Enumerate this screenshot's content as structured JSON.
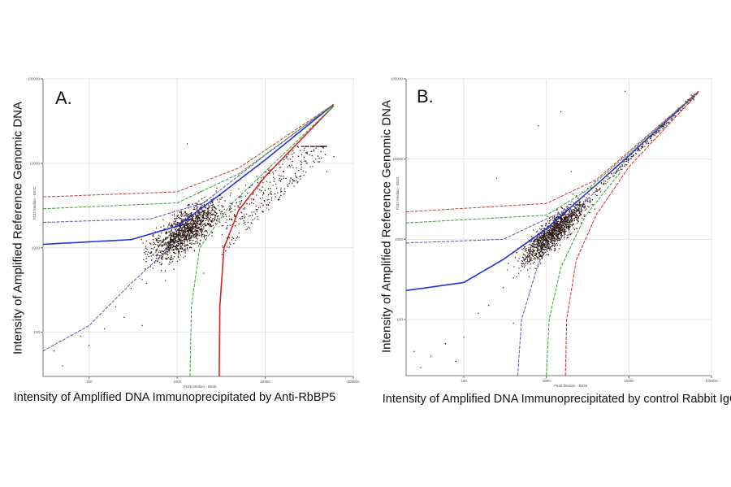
{
  "chart_data": [
    {
      "type": "scatter",
      "panel_label": "A.",
      "xlabel": "Intensity of Amplified DNA Immunoprecipitated by Anti-RbBP5",
      "ylabel": "Intensity of Amplified Reference Genomic DNA",
      "inner_xlabel": "F635 Median - B635",
      "inner_ylabel": "F532 Median - B532",
      "xscale": "log",
      "yscale": "log",
      "xlim": [
        30,
        100000
      ],
      "ylim": [
        30,
        100000
      ],
      "xticks": [
        "100",
        "1000",
        "10000",
        "100000"
      ],
      "yticks": [
        "100",
        "1000",
        "10000",
        "100000"
      ],
      "grid": true,
      "points": [
        [
          40,
          60
        ],
        [
          50,
          40
        ],
        [
          80,
          90
        ],
        [
          100,
          70
        ],
        [
          150,
          110
        ],
        [
          200,
          200
        ],
        [
          250,
          150
        ],
        [
          300,
          330
        ],
        [
          400,
          420
        ],
        [
          450,
          380
        ],
        [
          500,
          600
        ],
        [
          600,
          700
        ],
        [
          700,
          900
        ],
        [
          800,
          1000
        ],
        [
          900,
          1200
        ],
        [
          1000,
          1400
        ],
        [
          1200,
          1500
        ],
        [
          1500,
          1900
        ],
        [
          1800,
          2200
        ],
        [
          2000,
          2500
        ],
        [
          2500,
          2800
        ],
        [
          3000,
          3500
        ],
        [
          3500,
          3600
        ],
        [
          4000,
          4200
        ],
        [
          5000,
          5000
        ],
        [
          6000,
          5500
        ],
        [
          8000,
          7000
        ],
        [
          10000,
          8000
        ],
        [
          15000,
          9000
        ],
        [
          20000,
          9500
        ],
        [
          30000,
          10000
        ],
        [
          50000,
          8000
        ],
        [
          60000,
          12000
        ],
        [
          1300,
          17000
        ],
        [
          400,
          120
        ],
        [
          2000,
          500
        ]
      ],
      "curves": [
        {
          "color": "#2233dd",
          "style": "solid",
          "points": [
            [
              30,
              1100
            ],
            [
              300,
              1250
            ],
            [
              1000,
              1800
            ],
            [
              3000,
              4200
            ],
            [
              10000,
              11000
            ],
            [
              60000,
              50000
            ]
          ]
        },
        {
          "color": "#6655aa",
          "style": "dashed",
          "points": [
            [
              30,
              2000
            ],
            [
              500,
              2200
            ],
            [
              2000,
              3400
            ],
            [
              10000,
              12500
            ],
            [
              60000,
              50000
            ]
          ]
        },
        {
          "color": "#449944",
          "style": "dashed",
          "points": [
            [
              30,
              2900
            ],
            [
              1000,
              3400
            ],
            [
              5000,
              7500
            ],
            [
              60000,
              50000
            ]
          ]
        },
        {
          "color": "#bb4444",
          "style": "dashed",
          "points": [
            [
              30,
              4000
            ],
            [
              1000,
              4600
            ],
            [
              5000,
              8800
            ],
            [
              60000,
              50000
            ]
          ]
        },
        {
          "color": "#dd2222",
          "style": "solid",
          "points": [
            [
              3000,
              30
            ],
            [
              3050,
              200
            ],
            [
              3400,
              1000
            ],
            [
              5000,
              2800
            ],
            [
              10000,
              7000
            ],
            [
              60000,
              48000
            ]
          ]
        },
        {
          "color": "#449944",
          "style": "dashed",
          "points": [
            [
              1400,
              30
            ],
            [
              1450,
              200
            ],
            [
              1800,
              1000
            ],
            [
              4000,
              3200
            ],
            [
              60000,
              48000
            ]
          ]
        },
        {
          "color": "#6655aa",
          "style": "dashed",
          "points": [
            [
              30,
              60
            ],
            [
              100,
              120
            ],
            [
              300,
              380
            ],
            [
              1000,
              1200
            ]
          ]
        }
      ]
    },
    {
      "type": "scatter",
      "panel_label": "B.",
      "xlabel": "Intensity of Amplified DNA Immunoprecipitated by control Rabbit IgG",
      "ylabel": "Intensity of Amplified Reference Genomic DNA",
      "inner_xlabel": "F635 Median - B635",
      "inner_ylabel": "F532 Median - B532",
      "xscale": "log",
      "yscale": "log",
      "xlim": [
        20,
        100000
      ],
      "ylim": [
        20,
        100000
      ],
      "xticks": [
        "100",
        "1000",
        "10000",
        "100000"
      ],
      "yticks": [
        "100",
        "1000",
        "10000",
        "100000"
      ],
      "grid": true,
      "points": [
        [
          25,
          40
        ],
        [
          30,
          25
        ],
        [
          40,
          35
        ],
        [
          60,
          50
        ],
        [
          80,
          30
        ],
        [
          100,
          60
        ],
        [
          150,
          120
        ],
        [
          200,
          150
        ],
        [
          300,
          250
        ],
        [
          400,
          330
        ],
        [
          500,
          500
        ],
        [
          600,
          600
        ],
        [
          800,
          800
        ],
        [
          1000,
          1000
        ],
        [
          1300,
          1300
        ],
        [
          1600,
          1600
        ],
        [
          2000,
          2000
        ],
        [
          2500,
          2400
        ],
        [
          3000,
          3000
        ],
        [
          4000,
          4000
        ],
        [
          5000,
          5000
        ],
        [
          7000,
          7000
        ],
        [
          10000,
          10000
        ],
        [
          20000,
          20000
        ],
        [
          40000,
          40000
        ],
        [
          65000,
          65000
        ],
        [
          1500,
          39000
        ],
        [
          800,
          26000
        ],
        [
          9000,
          70000
        ],
        [
          250,
          5800
        ],
        [
          2000,
          7000
        ],
        [
          400,
          90
        ]
      ],
      "curves": [
        {
          "color": "#2233dd",
          "style": "solid",
          "points": [
            [
              20,
              230
            ],
            [
              100,
              290
            ],
            [
              300,
              560
            ],
            [
              1000,
              1350
            ],
            [
              10000,
              11000
            ],
            [
              70000,
              70000
            ]
          ]
        },
        {
          "color": "#6655aa",
          "style": "dashed",
          "points": [
            [
              20,
              900
            ],
            [
              300,
              1000
            ],
            [
              2000,
              2500
            ],
            [
              70000,
              70000
            ]
          ]
        },
        {
          "color": "#449944",
          "style": "dashed",
          "points": [
            [
              20,
              1600
            ],
            [
              1000,
              2000
            ],
            [
              3000,
              4000
            ],
            [
              70000,
              70000
            ]
          ]
        },
        {
          "color": "#bb4444",
          "style": "dashed",
          "points": [
            [
              20,
              2200
            ],
            [
              1000,
              2800
            ],
            [
              4000,
              5500
            ],
            [
              70000,
              70000
            ]
          ]
        },
        {
          "color": "#6655aa",
          "style": "dashed",
          "points": [
            [
              450,
              20
            ],
            [
              500,
              100
            ],
            [
              800,
              500
            ],
            [
              1500,
              1500
            ],
            [
              4000,
              4000
            ]
          ]
        },
        {
          "color": "#449944",
          "style": "dashed",
          "points": [
            [
              1000,
              20
            ],
            [
              1080,
              100
            ],
            [
              1500,
              450
            ],
            [
              3000,
              2000
            ],
            [
              8000,
              7000
            ]
          ]
        },
        {
          "color": "#dd2222",
          "style": "dashed",
          "points": [
            [
              1700,
              20
            ],
            [
              1760,
              100
            ],
            [
              2300,
              550
            ],
            [
              4000,
              2000
            ],
            [
              10000,
              8000
            ],
            [
              70000,
              68000
            ]
          ]
        }
      ]
    }
  ]
}
